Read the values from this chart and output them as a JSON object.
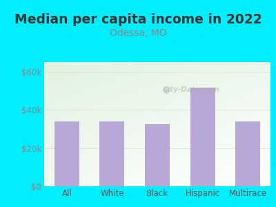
{
  "title": "Median per capita income in 2022",
  "subtitle": "Odessa, MO",
  "categories": [
    "All",
    "White",
    "Black",
    "Hispanic",
    "Multirace"
  ],
  "values": [
    34000,
    34000,
    32500,
    51500,
    34000
  ],
  "bar_color": "#b8a8d8",
  "title_fontsize": 13.5,
  "subtitle_fontsize": 10,
  "subtitle_color": "#888888",
  "title_color": "#333333",
  "ylim": [
    0,
    65000
  ],
  "yticks": [
    0,
    20000,
    40000,
    60000
  ],
  "ytick_labels": [
    "$0",
    "$20k",
    "$40k",
    "$60k"
  ],
  "bg_outer": "#00eeff",
  "watermark": "City-Data.com",
  "tick_color": "#888888",
  "xtick_color": "#555555"
}
